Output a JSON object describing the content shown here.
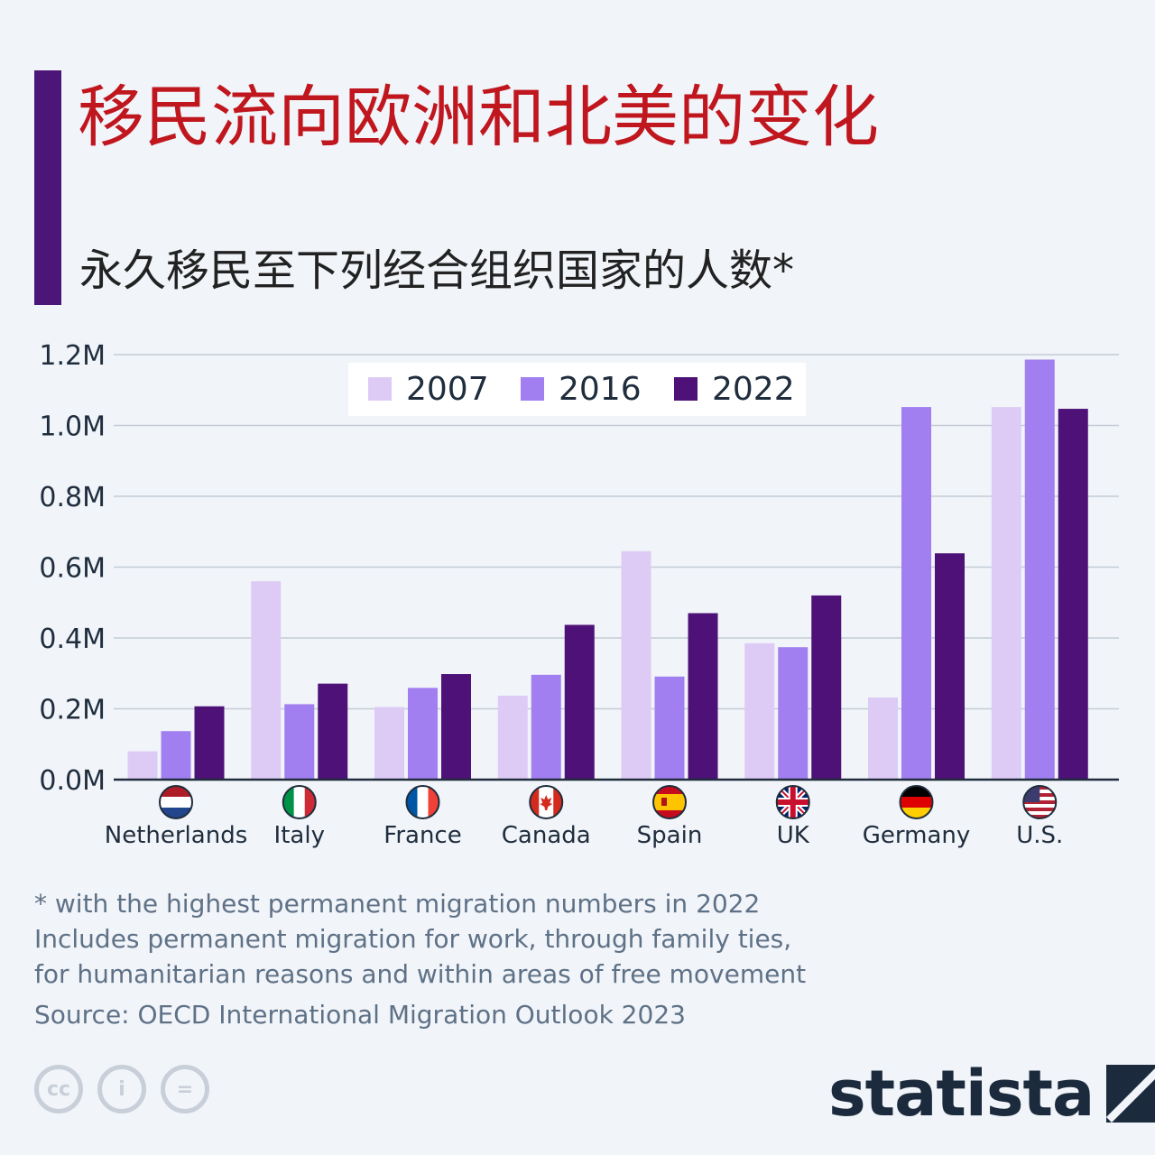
{
  "header": {
    "title": "移民流向欧洲和北美的变化",
    "subtitle": "永久移民至下列经合组织国家的人数*"
  },
  "chart_data": {
    "type": "bar",
    "title": "移民流向欧洲和北美的变化",
    "subtitle": "永久移民至下列经合组织国家的人数*",
    "categories": [
      "Netherlands",
      "Italy",
      "France",
      "Canada",
      "Spain",
      "UK",
      "Germany",
      "U.S."
    ],
    "series": [
      {
        "name": "2007",
        "color": "#decbf5",
        "values": [
          0.08,
          0.56,
          0.205,
          0.237,
          0.645,
          0.385,
          0.232,
          1.052
        ]
      },
      {
        "name": "2016",
        "color": "#a27ff0",
        "values": [
          0.137,
          0.213,
          0.259,
          0.296,
          0.291,
          0.374,
          1.052,
          1.186
        ]
      },
      {
        "name": "2022",
        "color": "#4e1177",
        "values": [
          0.207,
          0.271,
          0.298,
          0.437,
          0.47,
          0.52,
          0.639,
          1.047
        ]
      }
    ],
    "ylim": [
      0,
      1.2
    ],
    "yticks": [
      "0.0M",
      "0.2M",
      "0.4M",
      "0.6M",
      "0.8M",
      "1.0M",
      "1.2M"
    ],
    "ylabel": "",
    "xlabel": "",
    "grid": true,
    "legend": "top-center"
  },
  "footnotes": {
    "line1": "* with the highest permanent migration numbers in 2022",
    "line2": "Includes permanent migration for work, through family ties,",
    "line3": "for humanitarian reasons and within areas of free movement",
    "source": "Source: OECD International Migration Outlook 2023"
  },
  "license_icons": [
    {
      "name": "cc-icon",
      "text": "cc"
    },
    {
      "name": "attribution-icon",
      "text": "i"
    },
    {
      "name": "no-derivatives-icon",
      "text": "="
    }
  ],
  "brand": {
    "name": "statista"
  }
}
